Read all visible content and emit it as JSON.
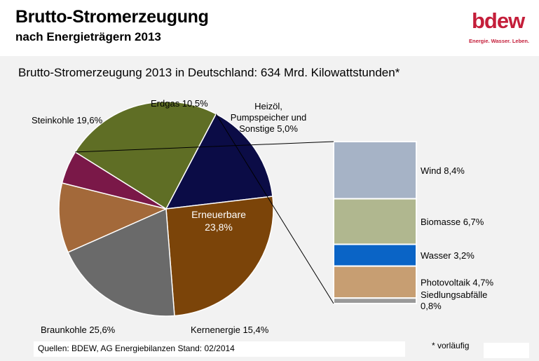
{
  "header": {
    "title": "Brutto-Stromerzeugung",
    "subtitle": "nach Energieträgern 2013",
    "logo_text": "bdew",
    "logo_tagline": "Energie. Wasser. Leben."
  },
  "footer": {
    "source": "Quellen: BDEW,  AG Energiebilanzen Stand: 02/2014",
    "note": "* vorläufig"
  },
  "chart_data": {
    "type": "pie",
    "title": "Brutto-Stromerzeugung 2013 in Deutschland: 634 Mrd. Kilowattstunden*",
    "slices": [
      {
        "label": "Erneuerbare",
        "display": "23,8%",
        "value": 23.8,
        "color": "#5f6e25"
      },
      {
        "label": "Kernenergie",
        "display": "15,4%",
        "value": 15.4,
        "color": "#0b0c46"
      },
      {
        "label": "Braunkohle",
        "display": "25,6%",
        "value": 25.6,
        "color": "#7b4409"
      },
      {
        "label": "Steinkohle",
        "display": "19,6%",
        "value": 19.6,
        "color": "#6a6a6a"
      },
      {
        "label": "Erdgas",
        "display": "10,5%",
        "value": 10.5,
        "color": "#a3693a"
      },
      {
        "label": "Heizöl, Pumpspeicher und Sonstige",
        "display": "5,0%",
        "value": 5.0,
        "color": "#7a1848"
      }
    ],
    "breakdown": {
      "of": "Erneuerbare",
      "items": [
        {
          "label": "Wind",
          "display": "8,4%",
          "value": 8.4,
          "color": "#a6b3c6"
        },
        {
          "label": "Biomasse",
          "display": "6,7%",
          "value": 6.7,
          "color": "#b0b78f"
        },
        {
          "label": "Wasser",
          "display": "3,2%",
          "value": 3.2,
          "color": "#0a64c6"
        },
        {
          "label": "Photovoltaik",
          "display": "4,7%",
          "value": 4.7,
          "color": "#c79e72"
        },
        {
          "label": "Siedlungsabfälle",
          "display": "0,8%",
          "value": 0.8,
          "color": "#9a9a9a"
        }
      ]
    }
  }
}
